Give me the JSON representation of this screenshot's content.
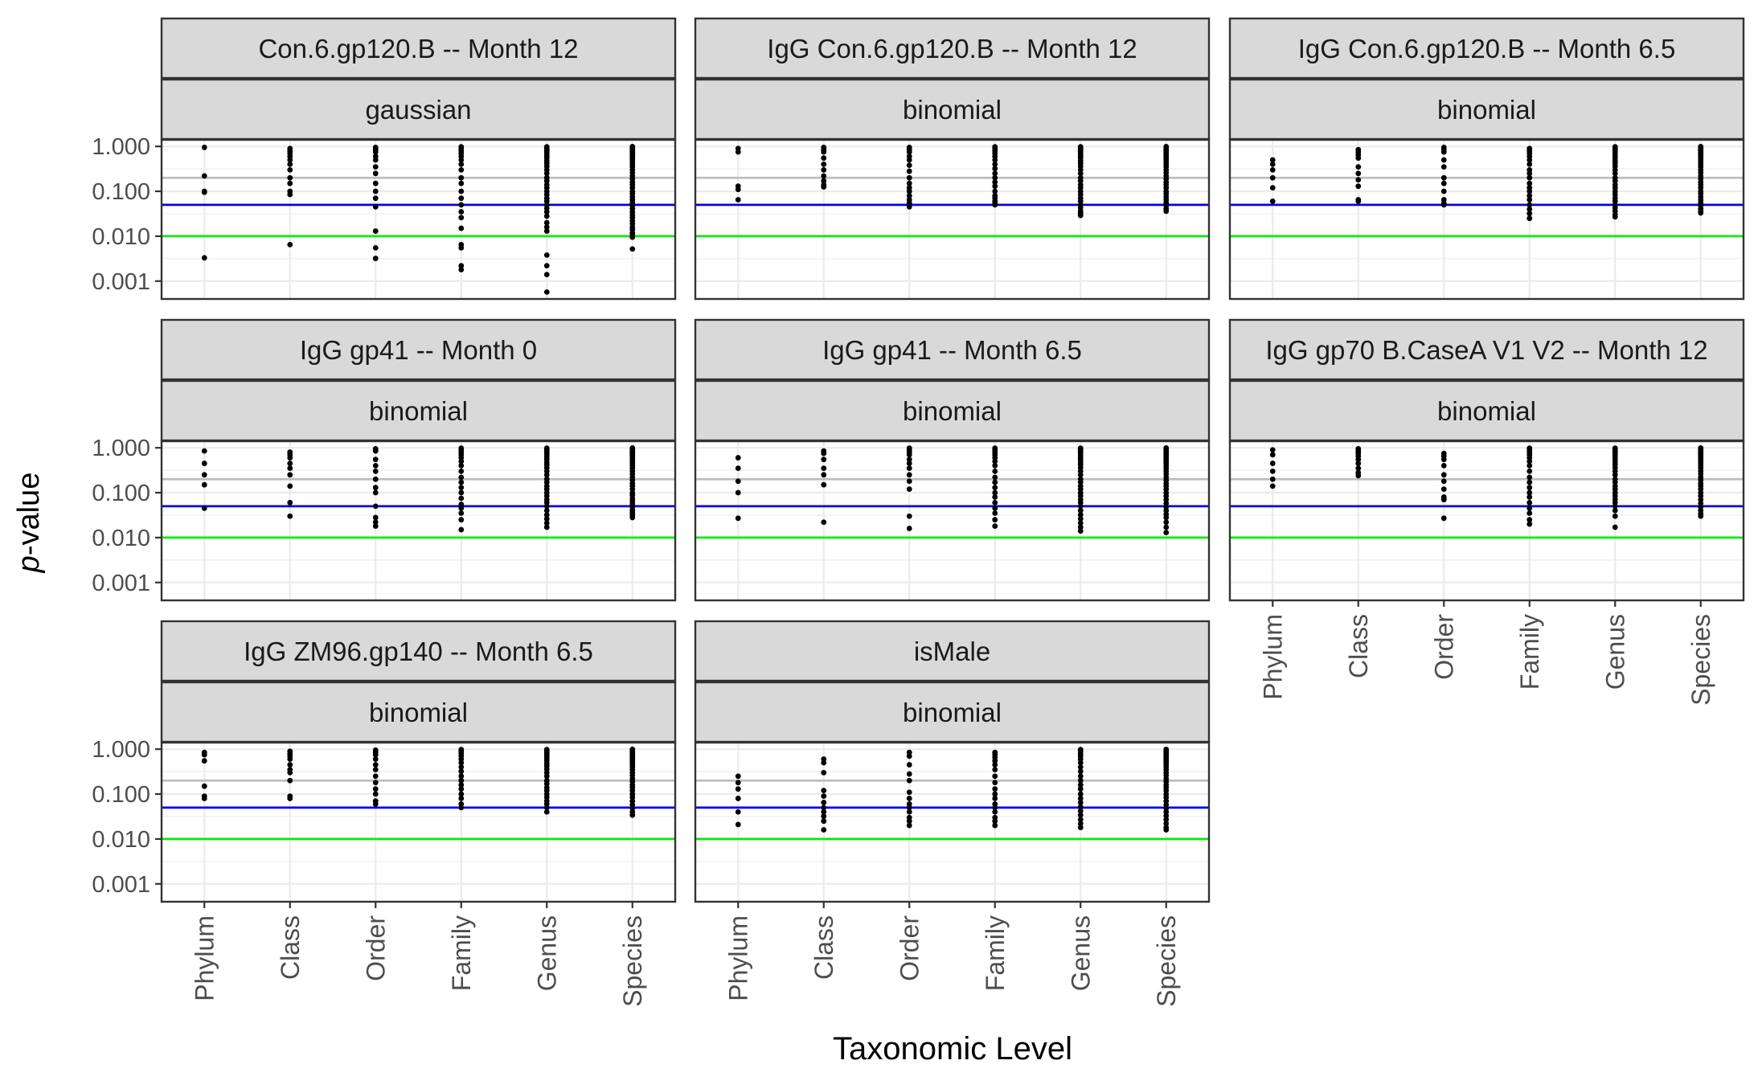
{
  "chart_data": {
    "type": "scatter",
    "xlabel": "Taxonomic Level",
    "ylabel_prefix": "p",
    "ylabel_suffix": "-value",
    "y_scale": "log10",
    "ylim": [
      0.0004,
      1.4
    ],
    "y_ticks": [
      0.001,
      0.01,
      0.1,
      1
    ],
    "y_tick_labels": [
      "0.001",
      "0.010",
      "0.100",
      "1.000"
    ],
    "categories": [
      "Phylum",
      "Class",
      "Order",
      "Family",
      "Genus",
      "Species"
    ],
    "reference_lines": [
      {
        "value": 0.2,
        "color": "#bdbdbd"
      },
      {
        "value": 0.05,
        "color": "#0000ee"
      },
      {
        "value": 0.01,
        "color": "#00ee00"
      }
    ],
    "grid": true,
    "panel_header_fill": "#d9d9d9",
    "panels": [
      {
        "strip_top": "Con.6.gp120.B -- Month 12",
        "strip_bottom": "gaussian",
        "points": {
          "Phylum": [
            0.95,
            0.22,
            0.1,
            0.095,
            0.0033
          ],
          "Class": [
            0.9,
            0.8,
            0.7,
            0.6,
            0.5,
            0.4,
            0.3,
            0.2,
            0.15,
            0.1,
            0.085,
            0.0065
          ],
          "Order": [
            0.95,
            0.85,
            0.75,
            0.6,
            0.5,
            0.35,
            0.25,
            0.15,
            0.1,
            0.07,
            0.045,
            0.013,
            0.0055,
            0.0032
          ],
          "Family": [
            0.98,
            0.9,
            0.8,
            0.7,
            0.6,
            0.5,
            0.4,
            0.3,
            0.2,
            0.15,
            0.1,
            0.07,
            0.05,
            0.035,
            0.026,
            0.015,
            0.0065,
            0.0055,
            0.0022,
            0.0018
          ],
          "Genus": [
            0.98,
            0.92,
            0.85,
            0.78,
            0.7,
            0.62,
            0.55,
            0.48,
            0.42,
            0.36,
            0.3,
            0.25,
            0.2,
            0.17,
            0.14,
            0.12,
            0.1,
            0.085,
            0.07,
            0.06,
            0.05,
            0.042,
            0.035,
            0.028,
            0.02,
            0.016,
            0.013,
            0.0038,
            0.0022,
            0.0014,
            0.00057
          ],
          "Species": [
            0.99,
            0.95,
            0.9,
            0.85,
            0.8,
            0.75,
            0.7,
            0.65,
            0.6,
            0.55,
            0.5,
            0.45,
            0.4,
            0.35,
            0.3,
            0.26,
            0.22,
            0.19,
            0.16,
            0.14,
            0.12,
            0.1,
            0.088,
            0.075,
            0.065,
            0.056,
            0.048,
            0.041,
            0.035,
            0.03,
            0.026,
            0.022,
            0.019,
            0.016,
            0.014,
            0.012,
            0.011,
            0.0095,
            0.0052
          ]
        }
      },
      {
        "strip_top": "IgG Con.6.gp120.B -- Month 12",
        "strip_bottom": "binomial",
        "points": {
          "Phylum": [
            0.9,
            0.75,
            0.13,
            0.11,
            0.065
          ],
          "Class": [
            0.95,
            0.85,
            0.75,
            0.55,
            0.4,
            0.3,
            0.22,
            0.17,
            0.14,
            0.125
          ],
          "Order": [
            0.95,
            0.85,
            0.75,
            0.6,
            0.5,
            0.38,
            0.28,
            0.2,
            0.15,
            0.12,
            0.1,
            0.08,
            0.065,
            0.055,
            0.045
          ],
          "Family": [
            0.98,
            0.9,
            0.8,
            0.7,
            0.6,
            0.5,
            0.4,
            0.32,
            0.25,
            0.2,
            0.16,
            0.13,
            0.1,
            0.08,
            0.07,
            0.06,
            0.055,
            0.05
          ],
          "Genus": [
            0.98,
            0.92,
            0.85,
            0.78,
            0.7,
            0.62,
            0.55,
            0.48,
            0.42,
            0.36,
            0.3,
            0.25,
            0.2,
            0.17,
            0.14,
            0.12,
            0.1,
            0.085,
            0.07,
            0.06,
            0.05,
            0.043,
            0.036,
            0.032,
            0.029
          ],
          "Species": [
            0.99,
            0.95,
            0.9,
            0.85,
            0.8,
            0.75,
            0.7,
            0.65,
            0.6,
            0.55,
            0.5,
            0.45,
            0.4,
            0.35,
            0.3,
            0.26,
            0.22,
            0.19,
            0.16,
            0.14,
            0.12,
            0.1,
            0.088,
            0.075,
            0.065,
            0.056,
            0.048,
            0.041,
            0.036
          ]
        }
      },
      {
        "strip_top": "IgG Con.6.gp120.B -- Month 6.5",
        "strip_bottom": "binomial",
        "points": {
          "Phylum": [
            0.5,
            0.4,
            0.3,
            0.2,
            0.12,
            0.06
          ],
          "Class": [
            0.85,
            0.75,
            0.65,
            0.55,
            0.35,
            0.25,
            0.18,
            0.13,
            0.065,
            0.06
          ],
          "Order": [
            0.95,
            0.85,
            0.75,
            0.5,
            0.35,
            0.2,
            0.15,
            0.1,
            0.065,
            0.055,
            0.05
          ],
          "Family": [
            0.9,
            0.8,
            0.7,
            0.6,
            0.5,
            0.4,
            0.3,
            0.25,
            0.2,
            0.15,
            0.12,
            0.1,
            0.08,
            0.065,
            0.05,
            0.04,
            0.032,
            0.025
          ],
          "Genus": [
            0.98,
            0.92,
            0.85,
            0.78,
            0.7,
            0.62,
            0.55,
            0.48,
            0.42,
            0.36,
            0.3,
            0.25,
            0.2,
            0.17,
            0.14,
            0.12,
            0.1,
            0.085,
            0.07,
            0.06,
            0.05,
            0.043,
            0.036,
            0.03,
            0.027
          ],
          "Species": [
            0.99,
            0.95,
            0.9,
            0.85,
            0.8,
            0.75,
            0.7,
            0.65,
            0.6,
            0.55,
            0.5,
            0.45,
            0.4,
            0.35,
            0.3,
            0.26,
            0.22,
            0.19,
            0.16,
            0.14,
            0.12,
            0.1,
            0.088,
            0.075,
            0.065,
            0.056,
            0.048,
            0.041,
            0.036,
            0.033
          ]
        }
      },
      {
        "strip_top": "IgG gp41 -- Month 0",
        "strip_bottom": "binomial",
        "points": {
          "Phylum": [
            0.85,
            0.45,
            0.25,
            0.15,
            0.045
          ],
          "Class": [
            0.8,
            0.7,
            0.6,
            0.45,
            0.35,
            0.25,
            0.14,
            0.06,
            0.03
          ],
          "Order": [
            0.95,
            0.85,
            0.55,
            0.4,
            0.3,
            0.2,
            0.13,
            0.1,
            0.05,
            0.028,
            0.022,
            0.018
          ],
          "Family": [
            0.98,
            0.9,
            0.8,
            0.7,
            0.6,
            0.5,
            0.4,
            0.3,
            0.22,
            0.17,
            0.13,
            0.1,
            0.075,
            0.055,
            0.045,
            0.035,
            0.025,
            0.015
          ],
          "Genus": [
            0.98,
            0.92,
            0.85,
            0.78,
            0.7,
            0.62,
            0.55,
            0.48,
            0.42,
            0.36,
            0.3,
            0.25,
            0.2,
            0.17,
            0.14,
            0.12,
            0.1,
            0.085,
            0.07,
            0.06,
            0.05,
            0.04,
            0.032,
            0.026,
            0.021,
            0.017
          ],
          "Species": [
            0.99,
            0.95,
            0.9,
            0.85,
            0.8,
            0.75,
            0.7,
            0.65,
            0.6,
            0.55,
            0.5,
            0.45,
            0.4,
            0.35,
            0.3,
            0.26,
            0.22,
            0.19,
            0.16,
            0.14,
            0.12,
            0.1,
            0.088,
            0.075,
            0.065,
            0.056,
            0.048,
            0.041,
            0.036,
            0.032,
            0.028
          ]
        }
      },
      {
        "strip_top": "IgG gp41 -- Month 6.5",
        "strip_bottom": "binomial",
        "points": {
          "Phylum": [
            0.6,
            0.35,
            0.18,
            0.1,
            0.027
          ],
          "Class": [
            0.85,
            0.75,
            0.55,
            0.35,
            0.25,
            0.15,
            0.022
          ],
          "Order": [
            0.98,
            0.9,
            0.8,
            0.7,
            0.55,
            0.45,
            0.35,
            0.25,
            0.18,
            0.12,
            0.03,
            0.016
          ],
          "Family": [
            0.98,
            0.9,
            0.8,
            0.7,
            0.6,
            0.5,
            0.4,
            0.3,
            0.22,
            0.17,
            0.13,
            0.1,
            0.08,
            0.06,
            0.045,
            0.035,
            0.025,
            0.018
          ],
          "Genus": [
            0.98,
            0.92,
            0.85,
            0.78,
            0.7,
            0.62,
            0.55,
            0.48,
            0.42,
            0.36,
            0.3,
            0.25,
            0.2,
            0.17,
            0.14,
            0.12,
            0.1,
            0.085,
            0.07,
            0.06,
            0.05,
            0.04,
            0.032,
            0.026,
            0.021,
            0.017,
            0.014
          ],
          "Species": [
            0.99,
            0.95,
            0.9,
            0.85,
            0.8,
            0.75,
            0.7,
            0.65,
            0.6,
            0.55,
            0.5,
            0.45,
            0.4,
            0.35,
            0.3,
            0.26,
            0.22,
            0.19,
            0.16,
            0.14,
            0.12,
            0.1,
            0.085,
            0.07,
            0.058,
            0.048,
            0.04,
            0.033,
            0.028,
            0.022,
            0.017,
            0.013
          ]
        }
      },
      {
        "strip_top": "IgG gp70 B.CaseA V1 V2 -- Month 12",
        "strip_bottom": "binomial",
        "points": {
          "Phylum": [
            0.9,
            0.7,
            0.45,
            0.3,
            0.2,
            0.14
          ],
          "Class": [
            0.95,
            0.85,
            0.75,
            0.65,
            0.55,
            0.45,
            0.35,
            0.28,
            0.24
          ],
          "Order": [
            0.75,
            0.65,
            0.55,
            0.4,
            0.25,
            0.18,
            0.12,
            0.08,
            0.07,
            0.027
          ],
          "Family": [
            0.98,
            0.9,
            0.8,
            0.7,
            0.6,
            0.5,
            0.4,
            0.3,
            0.22,
            0.17,
            0.13,
            0.1,
            0.08,
            0.06,
            0.045,
            0.035,
            0.025,
            0.02
          ],
          "Genus": [
            0.98,
            0.92,
            0.85,
            0.78,
            0.7,
            0.62,
            0.55,
            0.48,
            0.42,
            0.36,
            0.3,
            0.25,
            0.2,
            0.17,
            0.14,
            0.12,
            0.1,
            0.085,
            0.07,
            0.06,
            0.05,
            0.04,
            0.03,
            0.017
          ],
          "Species": [
            0.99,
            0.95,
            0.9,
            0.85,
            0.8,
            0.75,
            0.7,
            0.65,
            0.6,
            0.55,
            0.5,
            0.45,
            0.4,
            0.35,
            0.3,
            0.26,
            0.22,
            0.19,
            0.16,
            0.14,
            0.12,
            0.1,
            0.085,
            0.07,
            0.058,
            0.048,
            0.04,
            0.034,
            0.03
          ]
        }
      },
      {
        "strip_top": "IgG ZM96.gp140 -- Month 6.5",
        "strip_bottom": "binomial",
        "points": {
          "Phylum": [
            0.85,
            0.75,
            0.55,
            0.15,
            0.09,
            0.08
          ],
          "Class": [
            0.9,
            0.8,
            0.7,
            0.6,
            0.45,
            0.35,
            0.3,
            0.2,
            0.09,
            0.08
          ],
          "Order": [
            0.95,
            0.85,
            0.75,
            0.6,
            0.45,
            0.35,
            0.25,
            0.18,
            0.13,
            0.1,
            0.07,
            0.06
          ],
          "Family": [
            0.98,
            0.9,
            0.8,
            0.7,
            0.6,
            0.5,
            0.4,
            0.32,
            0.25,
            0.2,
            0.16,
            0.13,
            0.1,
            0.08,
            0.06,
            0.05
          ],
          "Genus": [
            0.98,
            0.92,
            0.85,
            0.78,
            0.7,
            0.62,
            0.55,
            0.48,
            0.42,
            0.36,
            0.3,
            0.25,
            0.2,
            0.17,
            0.14,
            0.12,
            0.1,
            0.085,
            0.07,
            0.06,
            0.05,
            0.04
          ],
          "Species": [
            0.99,
            0.95,
            0.9,
            0.85,
            0.8,
            0.75,
            0.7,
            0.65,
            0.6,
            0.55,
            0.5,
            0.45,
            0.4,
            0.35,
            0.3,
            0.26,
            0.22,
            0.19,
            0.16,
            0.14,
            0.12,
            0.1,
            0.085,
            0.07,
            0.058,
            0.048,
            0.04,
            0.034
          ]
        }
      },
      {
        "strip_top": "isMale",
        "strip_bottom": "binomial",
        "points": {
          "Phylum": [
            0.25,
            0.18,
            0.13,
            0.08,
            0.04,
            0.021
          ],
          "Class": [
            0.6,
            0.5,
            0.3,
            0.12,
            0.09,
            0.065,
            0.05,
            0.04,
            0.032,
            0.025,
            0.016
          ],
          "Order": [
            0.85,
            0.7,
            0.45,
            0.28,
            0.2,
            0.11,
            0.08,
            0.06,
            0.05,
            0.04,
            0.03,
            0.025,
            0.02
          ],
          "Family": [
            0.85,
            0.75,
            0.65,
            0.55,
            0.45,
            0.35,
            0.25,
            0.18,
            0.13,
            0.1,
            0.08,
            0.06,
            0.05,
            0.04,
            0.03,
            0.025,
            0.02
          ],
          "Genus": [
            0.98,
            0.9,
            0.8,
            0.7,
            0.6,
            0.5,
            0.4,
            0.32,
            0.25,
            0.2,
            0.16,
            0.13,
            0.1,
            0.08,
            0.065,
            0.052,
            0.042,
            0.034,
            0.027,
            0.022,
            0.018
          ],
          "Species": [
            0.99,
            0.95,
            0.9,
            0.85,
            0.8,
            0.75,
            0.7,
            0.65,
            0.6,
            0.55,
            0.5,
            0.45,
            0.4,
            0.35,
            0.3,
            0.26,
            0.22,
            0.19,
            0.16,
            0.14,
            0.12,
            0.1,
            0.085,
            0.07,
            0.058,
            0.048,
            0.04,
            0.033,
            0.027,
            0.022,
            0.018,
            0.016
          ]
        }
      }
    ]
  }
}
